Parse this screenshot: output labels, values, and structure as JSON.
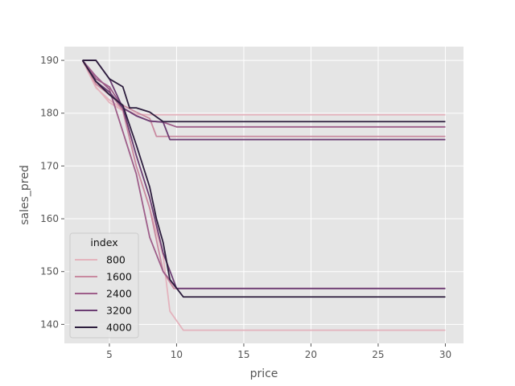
{
  "chart_data": {
    "type": "line",
    "title": "",
    "xlabel": "price",
    "ylabel": "sales_pred",
    "xlim": [
      1.65,
      31.35
    ],
    "ylim": [
      136.4,
      192.6
    ],
    "xticks": [
      5,
      10,
      15,
      20,
      25,
      30
    ],
    "yticks": [
      140,
      150,
      160,
      170,
      180,
      190
    ],
    "grid": true,
    "legend": {
      "title": "index",
      "placement": "lower-left"
    },
    "series": [
      {
        "name": "800",
        "color": "#e4b3bd",
        "points": [
          [
            3,
            190.0
          ],
          [
            4,
            184.8
          ],
          [
            5,
            182.5
          ],
          [
            6,
            180.8
          ],
          [
            7,
            179.8
          ],
          [
            8,
            179.7
          ],
          [
            9,
            179.7
          ],
          [
            10,
            179.7
          ],
          [
            30,
            179.7
          ]
        ]
      },
      {
        "name": "800",
        "color": "#e4b3bd",
        "points": [
          [
            3,
            190.0
          ],
          [
            4,
            185.0
          ],
          [
            5,
            182.0
          ],
          [
            6,
            180.5
          ],
          [
            7,
            170.0
          ],
          [
            8,
            162.0
          ],
          [
            9,
            153.0
          ],
          [
            9.5,
            142.5
          ],
          [
            10.5,
            138.9
          ],
          [
            30,
            138.9
          ]
        ]
      },
      {
        "name": "1600",
        "color": "#c98aa0",
        "points": [
          [
            3,
            190.0
          ],
          [
            4,
            185.5
          ],
          [
            5,
            183.5
          ],
          [
            6,
            181.5
          ],
          [
            7,
            180.2
          ],
          [
            8,
            179.0
          ],
          [
            8.5,
            175.6
          ],
          [
            10,
            175.6
          ],
          [
            30,
            175.6
          ]
        ]
      },
      {
        "name": "1600",
        "color": "#c98aa0",
        "points": [
          [
            3,
            190.0
          ],
          [
            4,
            186.0
          ],
          [
            5,
            184.0
          ],
          [
            6,
            180.5
          ],
          [
            7,
            170.0
          ],
          [
            8,
            162.0
          ],
          [
            9,
            150.0
          ],
          [
            9.8,
            146.8
          ],
          [
            30,
            146.8
          ]
        ]
      },
      {
        "name": "2400",
        "color": "#9e5e8a",
        "points": [
          [
            3,
            190.0
          ],
          [
            4,
            186.5
          ],
          [
            5,
            185.0
          ],
          [
            6,
            181.0
          ],
          [
            7,
            179.5
          ],
          [
            8,
            178.5
          ],
          [
            9,
            178.3
          ],
          [
            10,
            177.4
          ],
          [
            30,
            177.4
          ]
        ]
      },
      {
        "name": "2400",
        "color": "#9e5e8a",
        "points": [
          [
            3,
            190.0
          ],
          [
            4,
            187.0
          ],
          [
            5,
            184.5
          ],
          [
            6,
            176.5
          ],
          [
            7,
            168.5
          ],
          [
            8,
            156.5
          ],
          [
            9,
            150.0
          ],
          [
            10,
            146.8
          ],
          [
            30,
            146.8
          ]
        ]
      },
      {
        "name": "3200",
        "color": "#6b3d73",
        "points": [
          [
            3,
            190.0
          ],
          [
            4,
            190.0
          ],
          [
            5,
            186.5
          ],
          [
            6,
            181.0
          ],
          [
            7,
            179.5
          ],
          [
            8,
            178.5
          ],
          [
            9,
            178.3
          ],
          [
            9.5,
            175.0
          ],
          [
            30,
            175.0
          ]
        ]
      },
      {
        "name": "3200",
        "color": "#6b3d73",
        "points": [
          [
            3,
            190.0
          ],
          [
            4,
            186.0
          ],
          [
            5,
            184.0
          ],
          [
            6,
            181.0
          ],
          [
            7,
            172.0
          ],
          [
            8,
            164.0
          ],
          [
            9,
            153.5
          ],
          [
            10,
            146.8
          ],
          [
            30,
            146.8
          ]
        ]
      },
      {
        "name": "4000",
        "color": "#2d1e3e",
        "points": [
          [
            3,
            190.0
          ],
          [
            4,
            190.0
          ],
          [
            5,
            186.5
          ],
          [
            6,
            185.0
          ],
          [
            6.5,
            181.0
          ],
          [
            7,
            181.0
          ],
          [
            8,
            180.2
          ],
          [
            9,
            178.4
          ],
          [
            10,
            178.4
          ],
          [
            30,
            178.4
          ]
        ]
      },
      {
        "name": "4000",
        "color": "#2d1e3e",
        "points": [
          [
            3,
            190.0
          ],
          [
            4,
            186.0
          ],
          [
            5,
            183.5
          ],
          [
            6,
            181.5
          ],
          [
            7,
            174.0
          ],
          [
            8,
            166.0
          ],
          [
            8.5,
            160.0
          ],
          [
            9,
            155.5
          ],
          [
            9.5,
            148.5
          ],
          [
            10.5,
            145.2
          ],
          [
            30,
            145.2
          ]
        ]
      }
    ],
    "legend_entries": [
      {
        "label": "800",
        "color": "#e4b3bd"
      },
      {
        "label": "1600",
        "color": "#c98aa0"
      },
      {
        "label": "2400",
        "color": "#9e5e8a"
      },
      {
        "label": "3200",
        "color": "#6b3d73"
      },
      {
        "label": "4000",
        "color": "#2d1e3e"
      }
    ]
  }
}
